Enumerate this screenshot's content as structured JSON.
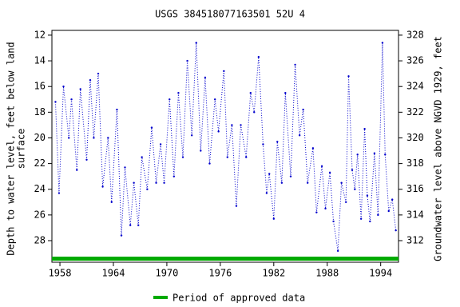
{
  "chart_data": {
    "type": "line",
    "title": "USGS 384518077163501 52U  4",
    "y_label": [
      "Depth to water level, feet below land",
      "surface"
    ],
    "y2_label": "Groundwater level above NGVD 1929, feet",
    "xlim": [
      1957.1,
      1996.0
    ],
    "xticks": [
      1958,
      1964,
      1970,
      1976,
      1982,
      1988,
      1994
    ],
    "ylim": [
      29.68,
      11.63
    ],
    "yticks": [
      12,
      14,
      16,
      18,
      20,
      22,
      24,
      26,
      28
    ],
    "y2lim": [
      310.32,
      328.37
    ],
    "y2ticks": [
      312,
      314,
      316,
      318,
      320,
      322,
      324,
      326,
      328
    ],
    "series": [
      {
        "name": "Depth to water level",
        "color": "#0000cc",
        "x": [
          1957.5,
          1957.9,
          1958.4,
          1959.0,
          1959.3,
          1959.9,
          1960.3,
          1961.0,
          1961.4,
          1961.8,
          1962.3,
          1962.8,
          1963.4,
          1963.8,
          1964.4,
          1964.9,
          1965.3,
          1965.9,
          1966.3,
          1966.8,
          1967.2,
          1967.8,
          1968.3,
          1968.8,
          1969.3,
          1969.7,
          1970.3,
          1970.8,
          1971.3,
          1971.8,
          1972.3,
          1972.8,
          1973.3,
          1973.8,
          1974.3,
          1974.8,
          1975.4,
          1975.8,
          1976.4,
          1976.8,
          1977.3,
          1977.8,
          1978.3,
          1978.9,
          1979.4,
          1979.8,
          1980.3,
          1980.8,
          1981.2,
          1981.5,
          1982.0,
          1982.4,
          1982.9,
          1983.3,
          1983.9,
          1984.4,
          1984.9,
          1985.3,
          1985.8,
          1986.4,
          1986.8,
          1987.4,
          1987.8,
          1988.3,
          1988.7,
          1989.2,
          1989.6,
          1990.1,
          1990.4,
          1990.8,
          1991.1,
          1991.4,
          1991.8,
          1992.2,
          1992.5,
          1992.8,
          1993.3,
          1993.7,
          1994.2,
          1994.5,
          1994.9,
          1995.3,
          1995.7
        ],
        "values": [
          17.2,
          24.3,
          16.0,
          20,
          17,
          22.5,
          16.2,
          21.7,
          15.5,
          20,
          15.0,
          23.8,
          20,
          25,
          17.8,
          27.6,
          22.3,
          26.8,
          23.5,
          26.8,
          21.5,
          24,
          19.2,
          23.5,
          20.5,
          23.5,
          17,
          23,
          16.5,
          21.5,
          14,
          19.8,
          12.6,
          21,
          15.3,
          22,
          17,
          19.5,
          14.8,
          21.5,
          19,
          25.3,
          19,
          21.5,
          16.5,
          18,
          13.7,
          20.5,
          24.3,
          22.8,
          26.3,
          20.3,
          23.5,
          16.5,
          23,
          14.3,
          19.8,
          17.8,
          23.5,
          20.8,
          25.8,
          22.2,
          25.5,
          22.7,
          26.5,
          28.8,
          23.5,
          25,
          15.2,
          22.5,
          24,
          21.3,
          26.3,
          19.3,
          24.5,
          26.5,
          21.2,
          26,
          12.6,
          21.3,
          25.7,
          24.8,
          27.2
        ]
      }
    ],
    "approved_periods": [
      [
        1957.1,
        1996.0
      ]
    ],
    "approved_color": "#00aa00",
    "legend_label": "Period of approved data"
  }
}
